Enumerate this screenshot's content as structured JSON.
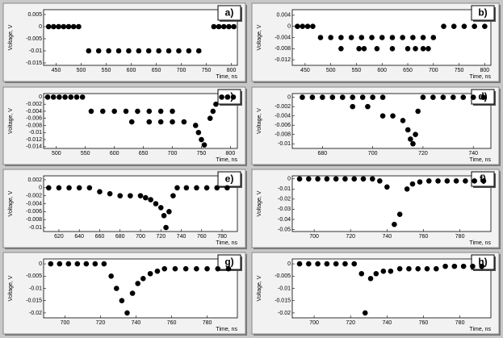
{
  "chart_data": [
    {
      "type": "scatter",
      "panel_label": "a)",
      "xlabel": "Time, ns",
      "ylabel": "Voltage, V",
      "x": [
        435,
        445,
        455,
        465,
        475,
        485,
        495,
        515,
        535,
        555,
        575,
        595,
        615,
        635,
        655,
        675,
        695,
        715,
        735,
        765,
        775,
        785,
        795,
        805
      ],
      "values": [
        0,
        0,
        0,
        0,
        0,
        0,
        0,
        -0.01,
        -0.01,
        -0.01,
        -0.01,
        -0.01,
        -0.01,
        -0.01,
        -0.01,
        -0.01,
        -0.01,
        -0.01,
        -0.01,
        0,
        0,
        0,
        0,
        0
      ],
      "xlim": [
        425,
        812
      ],
      "xticks": [
        450,
        500,
        550,
        600,
        650,
        700,
        750,
        800
      ],
      "ylim": [
        -0.016,
        0.007
      ],
      "yticks": [
        0.005,
        0,
        -0.005,
        -0.01,
        -0.015
      ]
    },
    {
      "type": "scatter",
      "panel_label": "b)",
      "xlabel": "Time, ns",
      "ylabel": "Voltage, V",
      "x": [
        435,
        445,
        455,
        465,
        480,
        500,
        520,
        540,
        560,
        580,
        600,
        620,
        640,
        660,
        680,
        700,
        520,
        555,
        565,
        590,
        620,
        650,
        665,
        680,
        690,
        720,
        740,
        760,
        780,
        800
      ],
      "values": [
        0,
        0,
        0,
        0,
        -0.004,
        -0.004,
        -0.004,
        -0.004,
        -0.004,
        -0.004,
        -0.004,
        -0.004,
        -0.004,
        -0.004,
        -0.004,
        -0.004,
        -0.008,
        -0.008,
        -0.008,
        -0.008,
        -0.008,
        -0.008,
        -0.008,
        -0.008,
        -0.008,
        0,
        0,
        0,
        0,
        0
      ],
      "xlim": [
        425,
        812
      ],
      "xticks": [
        450,
        500,
        550,
        600,
        650,
        700,
        750,
        800
      ],
      "ylim": [
        -0.014,
        0.006
      ],
      "yticks": [
        0.004,
        0,
        -0.004,
        -0.008,
        -0.012
      ]
    },
    {
      "type": "scatter",
      "panel_label": "c)",
      "xlabel": "Time, ns",
      "ylabel": "Voltage, V",
      "x": [
        485,
        495,
        505,
        515,
        525,
        535,
        545,
        560,
        580,
        600,
        620,
        640,
        660,
        680,
        700,
        630,
        660,
        680,
        700,
        720,
        740,
        745,
        750,
        755,
        765,
        770,
        775,
        785,
        795,
        805
      ],
      "values": [
        0,
        0,
        0,
        0,
        0,
        0,
        0,
        -0.004,
        -0.004,
        -0.004,
        -0.004,
        -0.004,
        -0.004,
        -0.004,
        -0.004,
        -0.007,
        -0.007,
        -0.007,
        -0.007,
        -0.007,
        -0.008,
        -0.01,
        -0.012,
        -0.0135,
        -0.006,
        -0.004,
        -0.002,
        0,
        0,
        0
      ],
      "xlim": [
        478,
        812
      ],
      "xticks": [
        500,
        550,
        600,
        650,
        700,
        750,
        800
      ],
      "ylim": [
        -0.0145,
        0.001
      ],
      "yticks": [
        0,
        -0.002,
        -0.004,
        -0.006,
        -0.008,
        -0.01,
        -0.012,
        -0.014
      ]
    },
    {
      "type": "scatter",
      "panel_label": "d)",
      "xlabel": "Time, ns",
      "ylabel": "Voltage, V",
      "x": [
        672,
        676,
        680,
        684,
        688,
        692,
        696,
        700,
        704,
        692,
        698,
        704,
        708,
        712,
        714,
        715,
        716,
        717,
        718,
        720,
        724,
        728,
        732,
        736,
        740,
        744
      ],
      "values": [
        0,
        0,
        0,
        0,
        0,
        0,
        0,
        0,
        0,
        -0.002,
        -0.002,
        -0.004,
        -0.004,
        -0.005,
        -0.007,
        -0.009,
        -0.01,
        -0.008,
        -0.003,
        0,
        0,
        0,
        0,
        0,
        0,
        0
      ],
      "xlim": [
        668,
        747
      ],
      "xticks": [
        680,
        700,
        720,
        740
      ],
      "ylim": [
        -0.011,
        0.0008
      ],
      "yticks": [
        0,
        -0.002,
        -0.004,
        -0.006,
        -0.008,
        -0.01
      ]
    },
    {
      "type": "scatter",
      "panel_label": "e)",
      "xlabel": "Time, ns",
      "ylabel": "Voltage, V",
      "x": [
        610,
        620,
        630,
        640,
        650,
        660,
        670,
        680,
        690,
        700,
        705,
        710,
        715,
        720,
        723,
        725,
        728,
        732,
        736,
        745,
        755,
        765,
        775,
        785
      ],
      "values": [
        0,
        0,
        0,
        0,
        0,
        -0.001,
        -0.0015,
        -0.002,
        -0.002,
        -0.002,
        -0.0025,
        -0.003,
        -0.004,
        -0.005,
        -0.007,
        -0.01,
        -0.006,
        -0.002,
        0,
        0,
        0,
        0,
        0,
        0
      ],
      "xlim": [
        605,
        795
      ],
      "xticks": [
        620,
        640,
        660,
        680,
        700,
        720,
        740,
        760,
        780
      ],
      "ylim": [
        -0.011,
        0.003
      ],
      "yticks": [
        0.002,
        0,
        -0.002,
        -0.004,
        -0.006,
        -0.008,
        -0.01
      ]
    },
    {
      "type": "scatter",
      "panel_label": "f)",
      "xlabel": "Time, ns",
      "ylabel": "Voltage, V",
      "x": [
        692,
        697,
        702,
        707,
        712,
        717,
        722,
        727,
        732,
        736,
        740,
        744,
        747,
        751,
        754,
        758,
        763,
        768,
        773,
        778,
        783,
        788,
        793
      ],
      "values": [
        0,
        0,
        0,
        0,
        0,
        0,
        0,
        0,
        0,
        -0.002,
        -0.008,
        -0.045,
        -0.035,
        -0.01,
        -0.005,
        -0.003,
        -0.002,
        -0.002,
        -0.002,
        -0.002,
        -0.002,
        -0.002,
        -0.002
      ],
      "xlim": [
        688,
        797
      ],
      "xticks": [
        700,
        720,
        740,
        760,
        780
      ],
      "ylim": [
        -0.052,
        0.003
      ],
      "yticks": [
        0,
        -0.01,
        -0.02,
        -0.03,
        -0.04,
        -0.05
      ]
    },
    {
      "type": "scatter",
      "panel_label": "g)",
      "xlabel": "Time, ns",
      "ylabel": "Voltage, V",
      "x": [
        692,
        697,
        702,
        707,
        712,
        717,
        722,
        726,
        729,
        732,
        735,
        738,
        741,
        744,
        748,
        752,
        756,
        762,
        768,
        774,
        780,
        786,
        792
      ],
      "values": [
        0,
        0,
        0,
        0,
        0,
        0,
        0,
        -0.005,
        -0.01,
        -0.015,
        -0.02,
        -0.012,
        -0.008,
        -0.006,
        -0.004,
        -0.003,
        -0.002,
        -0.002,
        -0.002,
        -0.002,
        -0.002,
        -0.002,
        -0.002
      ],
      "xlim": [
        688,
        797
      ],
      "xticks": [
        700,
        720,
        740,
        760,
        780
      ],
      "ylim": [
        -0.022,
        0.002
      ],
      "yticks": [
        0,
        -0.005,
        -0.01,
        -0.015,
        -0.02
      ]
    },
    {
      "type": "scatter",
      "panel_label": "h)",
      "xlabel": "Time, ns",
      "ylabel": "Voltage, V",
      "x": [
        692,
        697,
        702,
        707,
        712,
        717,
        722,
        726,
        728,
        731,
        734,
        738,
        742,
        747,
        752,
        757,
        762,
        767,
        772,
        777,
        782,
        787,
        792
      ],
      "values": [
        0,
        0,
        0,
        0,
        0,
        0,
        0,
        -0.004,
        -0.02,
        -0.006,
        -0.004,
        -0.003,
        -0.003,
        -0.002,
        -0.002,
        -0.002,
        -0.002,
        -0.002,
        -0.001,
        -0.001,
        -0.001,
        -0.001,
        -0.001
      ],
      "xlim": [
        688,
        797
      ],
      "xticks": [
        700,
        720,
        740,
        760,
        780
      ],
      "ylim": [
        -0.022,
        0.002
      ],
      "yticks": [
        0,
        -0.005,
        -0.01,
        -0.015,
        -0.02
      ]
    }
  ]
}
